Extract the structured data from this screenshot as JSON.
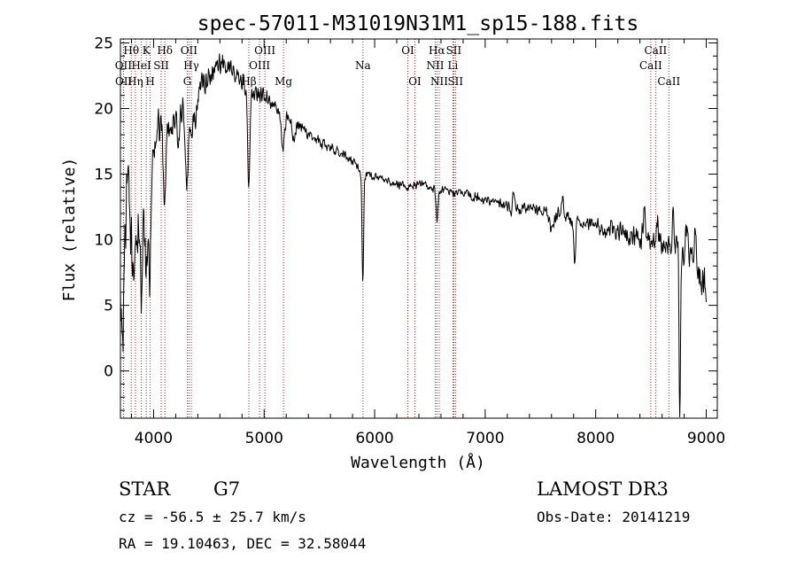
{
  "chart_data": {
    "type": "line",
    "title": "spec-57011-M31019N31M1_sp15-188.fits",
    "xlabel": "Wavelength (Å)",
    "ylabel": "Flux (relative)",
    "xlim": [
      3700,
      9100
    ],
    "ylim": [
      -3.6,
      25.3
    ],
    "xticks": [
      4000,
      5000,
      6000,
      7000,
      8000,
      9000
    ],
    "yticks": [
      0,
      5,
      10,
      15,
      20,
      25
    ],
    "grid": false,
    "line_color": "#000000",
    "marker_color": "#b22222",
    "continuum": [
      [
        3700,
        12
      ],
      [
        3730,
        15
      ],
      [
        3760,
        13
      ],
      [
        3800,
        14
      ],
      [
        3850,
        12
      ],
      [
        3900,
        13
      ],
      [
        3950,
        14
      ],
      [
        4000,
        17
      ],
      [
        4050,
        18.5
      ],
      [
        4100,
        19
      ],
      [
        4150,
        18
      ],
      [
        4200,
        20
      ],
      [
        4250,
        20.5
      ],
      [
        4300,
        19
      ],
      [
        4400,
        21.5
      ],
      [
        4500,
        22.5
      ],
      [
        4600,
        23.5
      ],
      [
        4700,
        23
      ],
      [
        4800,
        22
      ],
      [
        4900,
        21
      ],
      [
        5000,
        21
      ],
      [
        5100,
        20
      ],
      [
        5200,
        19.5
      ],
      [
        5300,
        19
      ],
      [
        5400,
        18
      ],
      [
        5500,
        17.5
      ],
      [
        5600,
        17
      ],
      [
        5700,
        16.5
      ],
      [
        5800,
        16
      ],
      [
        5900,
        15
      ],
      [
        6000,
        14.8
      ],
      [
        6100,
        14.5
      ],
      [
        6200,
        14.3
      ],
      [
        6300,
        14
      ],
      [
        6400,
        14.2
      ],
      [
        6500,
        14
      ],
      [
        6600,
        13.8
      ],
      [
        6700,
        13.6
      ],
      [
        6800,
        13.5
      ],
      [
        6900,
        13.2
      ],
      [
        7000,
        13
      ],
      [
        7100,
        12.8
      ],
      [
        7200,
        12.6
      ],
      [
        7300,
        12.3
      ],
      [
        7400,
        12.5
      ],
      [
        7500,
        12.3
      ],
      [
        7600,
        12.2
      ],
      [
        7700,
        11.8
      ],
      [
        7800,
        11.5
      ],
      [
        7900,
        11.2
      ],
      [
        8000,
        11
      ],
      [
        8100,
        10.8
      ],
      [
        8200,
        10.6
      ],
      [
        8300,
        10.4
      ],
      [
        8400,
        10.2
      ],
      [
        8500,
        9.8
      ],
      [
        8600,
        9.6
      ],
      [
        8700,
        9.5
      ],
      [
        8800,
        9
      ],
      [
        8900,
        8.5
      ],
      [
        9000,
        6
      ]
    ],
    "features": [
      {
        "w": 3720,
        "d": -10,
        "s": 18
      },
      {
        "w": 3810,
        "d": -5,
        "s": 15
      },
      {
        "w": 3835,
        "d": -4,
        "s": 12
      },
      {
        "w": 3889,
        "d": -6,
        "s": 14
      },
      {
        "w": 3933,
        "d": -7,
        "s": 10
      },
      {
        "w": 3968,
        "d": -8,
        "s": 10
      },
      {
        "w": 4101,
        "d": -5,
        "s": 12
      },
      {
        "w": 4227,
        "d": -3,
        "s": 10
      },
      {
        "w": 4300,
        "d": -6,
        "s": 10
      },
      {
        "w": 4340,
        "d": -3,
        "s": 12
      },
      {
        "w": 4383,
        "d": -2,
        "s": 10
      },
      {
        "w": 4861,
        "d": -7,
        "s": 10
      },
      {
        "w": 5170,
        "d": -3,
        "s": 15
      },
      {
        "w": 5270,
        "d": -1.5,
        "s": 15
      },
      {
        "w": 5893,
        "d": -8.5,
        "s": 7
      },
      {
        "w": 6563,
        "d": -2.5,
        "s": 8
      },
      {
        "w": 7250,
        "d": 2,
        "s": 12
      },
      {
        "w": 7240,
        "d": -2,
        "s": 8
      },
      {
        "w": 7600,
        "d": -1.5,
        "s": 20
      },
      {
        "w": 7700,
        "d": 1.2,
        "s": 12
      },
      {
        "w": 7810,
        "d": -3.5,
        "s": 8
      },
      {
        "w": 8440,
        "d": 2.5,
        "s": 10
      },
      {
        "w": 8560,
        "d": 1.8,
        "s": 10
      },
      {
        "w": 8700,
        "d": 2,
        "s": 10
      },
      {
        "w": 8760,
        "d": -12.5,
        "s": 6
      },
      {
        "w": 8820,
        "d": 2,
        "s": 10
      },
      {
        "w": 8900,
        "d": 2.5,
        "s": 10
      }
    ],
    "noise": [
      [
        3700,
        3.8
      ],
      [
        4000,
        2.2
      ],
      [
        4300,
        1.4
      ],
      [
        4600,
        1.0
      ],
      [
        5000,
        0.7
      ],
      [
        6000,
        0.35
      ],
      [
        7200,
        0.5
      ],
      [
        8000,
        0.7
      ],
      [
        8500,
        1.1
      ],
      [
        9000,
        1.8
      ]
    ],
    "sample_step": 4,
    "seed": 57011,
    "lines": [
      {
        "label": "Hθ",
        "w": 3798,
        "row": 0
      },
      {
        "label": "OII",
        "w": 3727,
        "row": 1
      },
      {
        "label": "OII",
        "w": 3729,
        "row": 2
      },
      {
        "label": "Hη",
        "w": 3835,
        "row": 2
      },
      {
        "label": "HeI",
        "w": 3889,
        "row": 1
      },
      {
        "label": "K",
        "w": 3934,
        "row": 0
      },
      {
        "label": "SII",
        "w": 4069,
        "row": 1
      },
      {
        "label": "H",
        "w": 3969,
        "row": 2
      },
      {
        "label": "Hδ",
        "w": 4102,
        "row": 0
      },
      {
        "label": "OII",
        "w": 4320,
        "row": 0
      },
      {
        "label": "Hγ",
        "w": 4341,
        "row": 1
      },
      {
        "label": "G",
        "w": 4305,
        "row": 2
      },
      {
        "label": "OIII",
        "w": 5007,
        "row": 0
      },
      {
        "label": "OIII",
        "w": 4959,
        "row": 1
      },
      {
        "label": "Hβ",
        "w": 4862,
        "row": 2
      },
      {
        "label": "Mg",
        "w": 5175,
        "row": 2
      },
      {
        "label": "Na",
        "w": 5894,
        "row": 1
      },
      {
        "label": "OI",
        "w": 6300,
        "row": 0
      },
      {
        "label": "OI",
        "w": 6364,
        "row": 2
      },
      {
        "label": "Hα",
        "w": 6563,
        "row": 0
      },
      {
        "label": "NII",
        "w": 6548,
        "row": 1
      },
      {
        "label": "NII",
        "w": 6584,
        "row": 2
      },
      {
        "label": "SII",
        "w": 6716,
        "row": 0
      },
      {
        "label": "Li",
        "w": 6708,
        "row": 1
      },
      {
        "label": "SII",
        "w": 6731,
        "row": 2
      },
      {
        "label": "CaII",
        "w": 8542,
        "row": 0
      },
      {
        "label": "CaII",
        "w": 8498,
        "row": 1
      },
      {
        "label": "CaII",
        "w": 8662,
        "row": 2
      }
    ]
  },
  "info": {
    "object_class": "STAR",
    "subclass": "G7",
    "survey": "LAMOST DR3",
    "redshift": "cz = -56.5 ± 25.7 km/s",
    "obs_date": "Obs-Date: 20141219",
    "coords": "RA =  19.10463, DEC =  32.58044"
  }
}
